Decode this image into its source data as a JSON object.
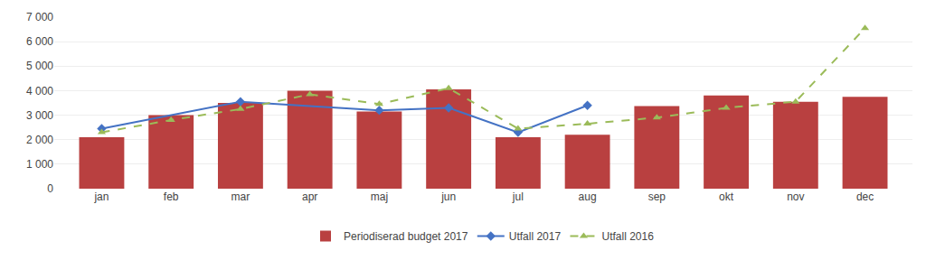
{
  "chart_data": {
    "type": "bar",
    "categories": [
      "jan",
      "feb",
      "mar",
      "apr",
      "maj",
      "jun",
      "jul",
      "aug",
      "sep",
      "okt",
      "nov",
      "dec"
    ],
    "series": [
      {
        "name": "Periodiserad budget 2017",
        "type": "bar",
        "color": "#b94040",
        "values": [
          2100,
          3000,
          3500,
          4000,
          3150,
          4050,
          2100,
          2200,
          3370,
          3800,
          3550,
          3750
        ]
      },
      {
        "name": "Utfall 2017",
        "type": "line",
        "color": "#4472c4",
        "marker": "diamond",
        "line_style": "solid",
        "values": [
          2450,
          null,
          3550,
          null,
          3200,
          3300,
          2300,
          3400,
          null,
          null,
          null,
          null
        ]
      },
      {
        "name": "Utfall 2016",
        "type": "line",
        "color": "#9bbb59",
        "marker": "triangle",
        "line_style": "dashed",
        "values": [
          2300,
          2800,
          3250,
          3850,
          3450,
          4100,
          2450,
          2650,
          2900,
          3300,
          3550,
          6550
        ]
      }
    ],
    "ylim": [
      0,
      7000
    ],
    "yticks": [
      0,
      {
        "value": 1000,
        "label": "1 000"
      },
      {
        "value": 2000,
        "label": "2 000"
      },
      {
        "value": 3000,
        "label": "3 000"
      },
      {
        "value": 4000,
        "label": "4 000"
      },
      {
        "value": 5000,
        "label": "5 000"
      },
      {
        "value": 6000,
        "label": "6 000"
      },
      {
        "value": 7000,
        "label": "7 000"
      }
    ],
    "grid": true,
    "legend": "bottom"
  }
}
